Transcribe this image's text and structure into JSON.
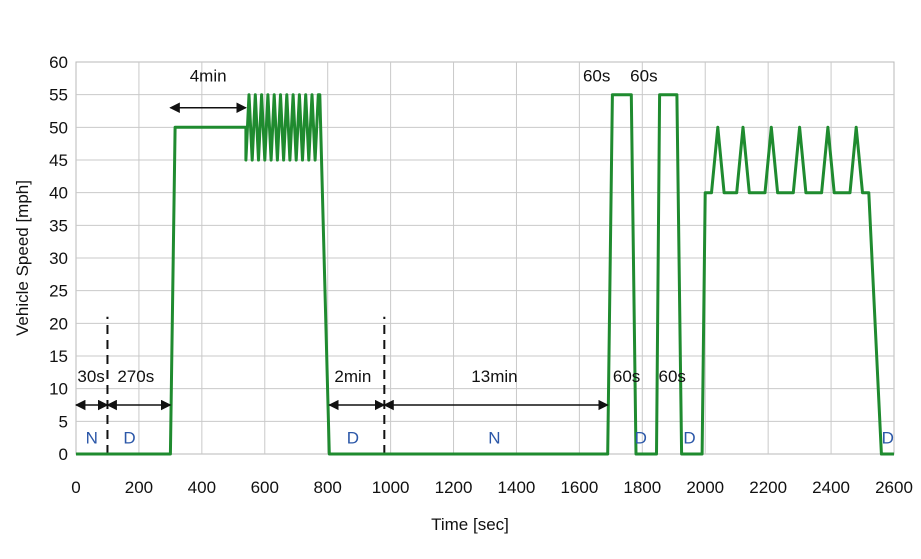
{
  "chart_data": {
    "type": "line",
    "title": "",
    "xlabel": "Time [sec]",
    "ylabel": "Vehicle Speed [mph]",
    "xlim": [
      0,
      2600
    ],
    "ylim": [
      0,
      60
    ],
    "xticks": [
      0,
      200,
      400,
      600,
      800,
      1000,
      1200,
      1400,
      1600,
      1800,
      2000,
      2200,
      2400,
      2600
    ],
    "yticks": [
      0,
      5,
      10,
      15,
      20,
      25,
      30,
      35,
      40,
      45,
      50,
      55,
      60
    ],
    "xtick_labels": [
      "0",
      "200",
      "400",
      "600",
      "800",
      "1000",
      "1200",
      "1400",
      "1600",
      "1800",
      "2000",
      "2200",
      "2400",
      "2600"
    ],
    "ytick_labels": [
      "0",
      "5",
      "10",
      "15",
      "20",
      "25",
      "30",
      "35",
      "40",
      "45",
      "50",
      "55",
      "60"
    ],
    "grid": true,
    "line_color": "#1f8b2f",
    "mode_color": "#2b57a8",
    "series": [
      {
        "points": [
          [
            0,
            0
          ],
          [
            300,
            0
          ],
          [
            315,
            50
          ],
          [
            540,
            50
          ],
          [
            540,
            45
          ],
          [
            550,
            55
          ],
          [
            560,
            45
          ],
          [
            570,
            55
          ],
          [
            580,
            45
          ],
          [
            590,
            55
          ],
          [
            600,
            45
          ],
          [
            610,
            55
          ],
          [
            620,
            45
          ],
          [
            630,
            55
          ],
          [
            640,
            45
          ],
          [
            650,
            55
          ],
          [
            660,
            45
          ],
          [
            670,
            55
          ],
          [
            680,
            45
          ],
          [
            690,
            55
          ],
          [
            700,
            45
          ],
          [
            710,
            55
          ],
          [
            720,
            45
          ],
          [
            730,
            55
          ],
          [
            740,
            45
          ],
          [
            750,
            55
          ],
          [
            760,
            45
          ],
          [
            770,
            55
          ],
          [
            775,
            55
          ],
          [
            805,
            0
          ],
          [
            1690,
            0
          ],
          [
            1705,
            55
          ],
          [
            1765,
            55
          ],
          [
            1780,
            0
          ],
          [
            1845,
            0
          ],
          [
            1855,
            55
          ],
          [
            1910,
            55
          ],
          [
            1925,
            0
          ],
          [
            1990,
            0
          ],
          [
            2000,
            40
          ],
          [
            2020,
            40
          ],
          [
            2040,
            50
          ],
          [
            2060,
            40
          ],
          [
            2100,
            40
          ],
          [
            2120,
            50
          ],
          [
            2140,
            40
          ],
          [
            2190,
            40
          ],
          [
            2210,
            50
          ],
          [
            2230,
            40
          ],
          [
            2280,
            40
          ],
          [
            2300,
            50
          ],
          [
            2320,
            40
          ],
          [
            2370,
            40
          ],
          [
            2390,
            50
          ],
          [
            2410,
            40
          ],
          [
            2460,
            40
          ],
          [
            2480,
            50
          ],
          [
            2500,
            40
          ],
          [
            2520,
            40
          ],
          [
            2560,
            0
          ],
          [
            2600,
            0
          ]
        ]
      }
    ],
    "vlines": [
      {
        "x": 100,
        "y_from": 0,
        "y_to": 21
      },
      {
        "x": 980,
        "y_from": 0,
        "y_to": 21
      }
    ],
    "arrows": [
      {
        "x1": 0,
        "x2": 100,
        "y": 7.5
      },
      {
        "x1": 100,
        "x2": 300,
        "y": 7.5
      },
      {
        "x1": 300,
        "x2": 540,
        "y": 53
      },
      {
        "x1": 805,
        "x2": 980,
        "y": 7.5
      },
      {
        "x1": 980,
        "x2": 1690,
        "y": 7.5
      }
    ],
    "annotations": [
      {
        "text": "30s",
        "x": 48,
        "y": 11
      },
      {
        "text": "270s",
        "x": 190,
        "y": 11
      },
      {
        "text": "4min",
        "x": 420,
        "y": 57
      },
      {
        "text": "2min",
        "x": 880,
        "y": 11
      },
      {
        "text": "13min",
        "x": 1330,
        "y": 11
      },
      {
        "text": "60s",
        "x": 1655,
        "y": 57
      },
      {
        "text": "60s",
        "x": 1805,
        "y": 57
      },
      {
        "text": "60s",
        "x": 1750,
        "y": 11
      },
      {
        "text": "60s",
        "x": 1895,
        "y": 11
      }
    ],
    "mode_labels": [
      {
        "text": "N",
        "x": 50,
        "y": 2.5
      },
      {
        "text": "D",
        "x": 170,
        "y": 2.5
      },
      {
        "text": "D",
        "x": 880,
        "y": 2.5
      },
      {
        "text": "N",
        "x": 1330,
        "y": 2.5
      },
      {
        "text": "D",
        "x": 1795,
        "y": 2.5
      },
      {
        "text": "D",
        "x": 1950,
        "y": 2.5
      },
      {
        "text": "D",
        "x": 2580,
        "y": 2.5
      }
    ]
  }
}
